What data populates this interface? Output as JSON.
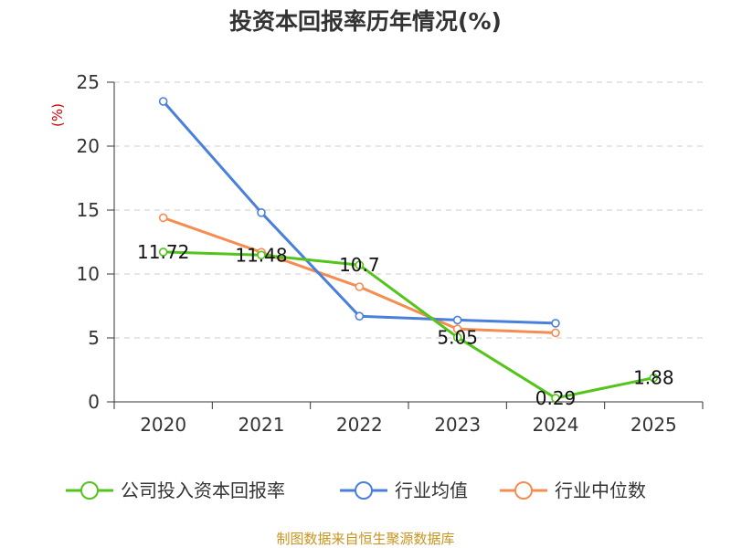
{
  "chart_data": {
    "type": "line",
    "title": "投资本回报率历年情况(%)",
    "ylabel": "(%)",
    "xlabel": "",
    "categories": [
      "2020",
      "2021",
      "2022",
      "2023",
      "2024",
      "2025"
    ],
    "ylim": [
      0,
      25
    ],
    "yticks": [
      "0",
      "5",
      "10",
      "15",
      "20",
      "25"
    ],
    "grid": true,
    "legend_position": "bottom",
    "series": [
      {
        "name": "公司投入资本回报率",
        "color": "#52c41a",
        "values": [
          11.72,
          11.48,
          10.7,
          5.05,
          0.29,
          1.88
        ],
        "labels": [
          "11.72",
          "11.48",
          "10.7",
          "5.05",
          "0.29",
          "1.88"
        ]
      },
      {
        "name": "行业均值",
        "color": "#4a7fdc",
        "values": [
          23.5,
          14.8,
          6.7,
          6.4,
          6.15,
          null
        ]
      },
      {
        "name": "行业中位数",
        "color": "#f58c52",
        "values": [
          14.4,
          11.7,
          9.0,
          5.7,
          5.4,
          null
        ]
      }
    ],
    "source": "制图数据来自恒生聚源数据库"
  }
}
